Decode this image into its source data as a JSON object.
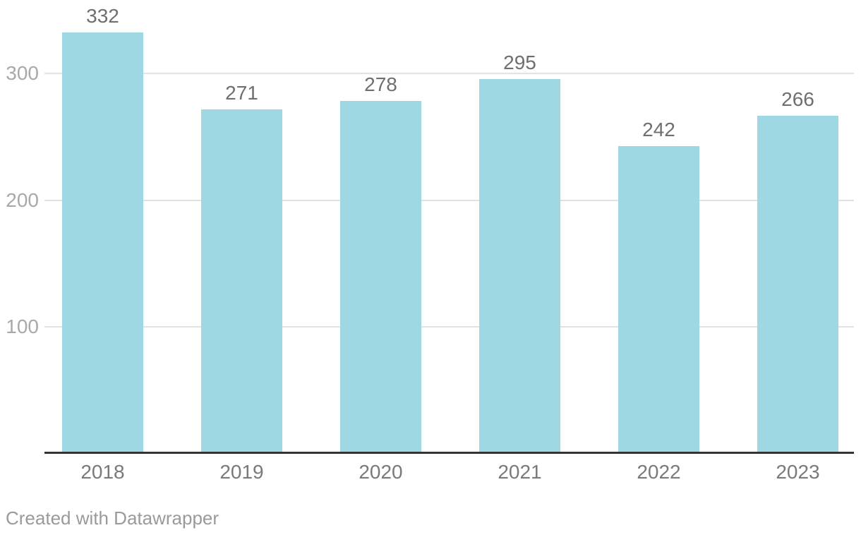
{
  "chart_data": {
    "type": "bar",
    "categories": [
      "2018",
      "2019",
      "2020",
      "2021",
      "2022",
      "2023"
    ],
    "values": [
      332,
      271,
      278,
      295,
      242,
      266
    ],
    "title": "",
    "xlabel": "",
    "ylabel": "",
    "yticks": [
      100,
      200,
      300
    ],
    "ylim": [
      0,
      357
    ],
    "grid": true,
    "legend": false,
    "value_labels": true,
    "colors": {
      "bar": "#9dd8e3",
      "axis_line": "#333333",
      "gridline": "#e2e2e2",
      "value_label": "#6f6f6f",
      "x_tick_label": "#7a7a7a",
      "y_tick_label": "#a9a9a9",
      "background": "#ffffff"
    }
  },
  "footer": {
    "attribution": "Created with Datawrapper"
  }
}
